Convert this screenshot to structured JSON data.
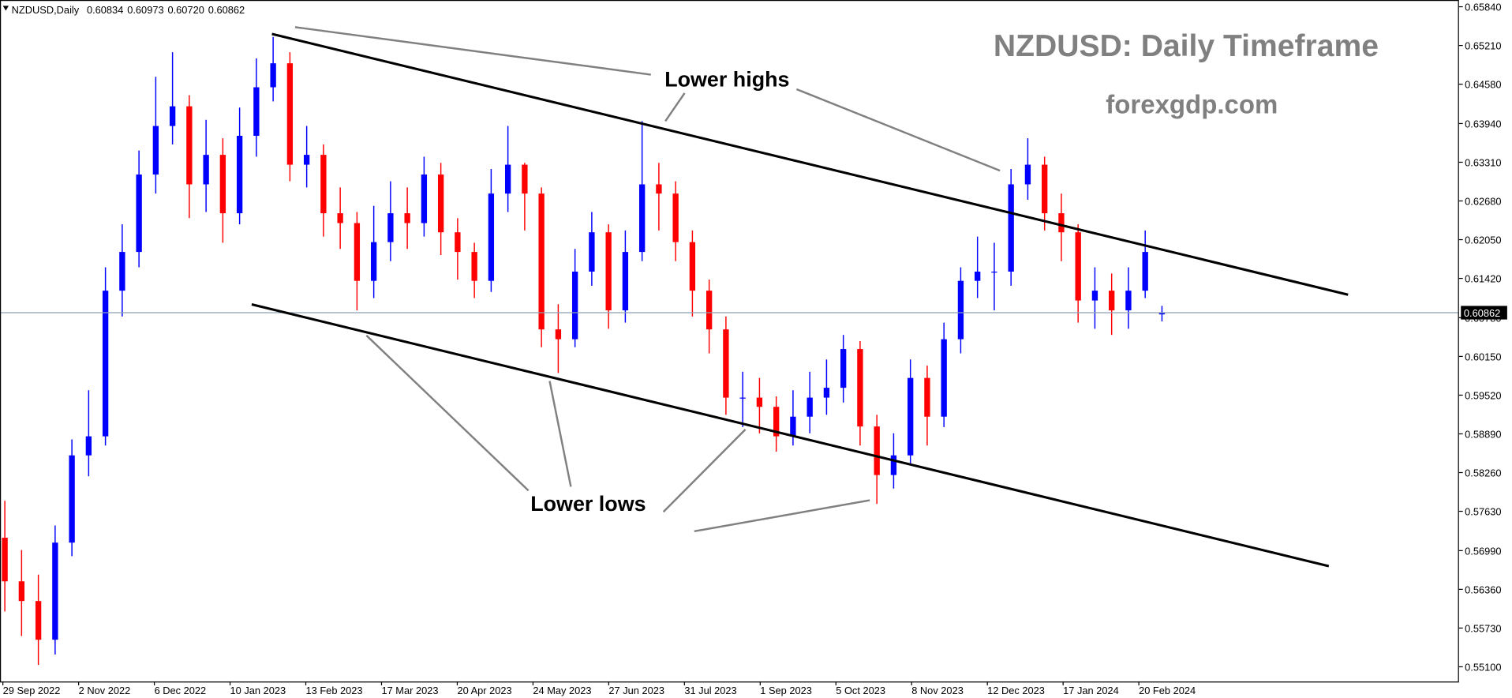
{
  "chart_data": {
    "type": "candlestick",
    "symbol": "NZDUSD,Daily",
    "title": "NZDUSD: Daily Timeframe",
    "subtitle": "forexgdp.com",
    "annotations": [
      "Lower highs",
      "Lower lows"
    ],
    "xticks": [
      "29 Sep 2022",
      "2 Nov 2022",
      "6 Dec 2022",
      "10 Jan 2023",
      "13 Feb 2023",
      "17 Mar 2023",
      "20 Apr 2023",
      "24 May 2023",
      "27 Jun 2023",
      "31 Jul 2023",
      "1 Sep 2023",
      "5 Oct 2023",
      "8 Nov 2023",
      "12 Dec 2023",
      "17 Jan 2024",
      "20 Feb 2024"
    ],
    "open": [
      0.572,
      0.5649,
      0.5617,
      0.5554,
      0.5712,
      0.5854,
      0.5885,
      0.6122,
      0.6185,
      0.6311,
      0.639,
      0.6422,
      0.6295,
      0.6343,
      0.6248,
      0.6374,
      0.6453,
      0.6492,
      0.6327,
      0.6343,
      0.6248,
      0.6232,
      0.6138,
      0.6201,
      0.6248,
      0.6232,
      0.6311,
      0.6217,
      0.6185,
      0.6138,
      0.628,
      0.6327,
      0.628,
      0.6059,
      0.6043,
      0.6153,
      0.6217,
      0.609,
      0.6185,
      0.6295,
      0.628,
      0.6201,
      0.6122,
      0.6059,
      0.5948,
      0.5948,
      0.5933,
      0.5885,
      0.5917,
      0.5948,
      0.5964,
      0.6027,
      0.5901,
      0.5822,
      0.5854,
      0.598,
      0.5917,
      0.6043,
      0.6138,
      0.6153,
      0.6153,
      0.6295,
      0.6327,
      0.6248,
      0.6217,
      0.6106,
      0.6122,
      0.609,
      0.6122,
      0.60834
    ],
    "high": [
      0.578,
      0.57,
      0.566,
      0.574,
      0.588,
      0.596,
      0.616,
      0.623,
      0.635,
      0.647,
      0.651,
      0.644,
      0.64,
      0.637,
      0.642,
      0.65,
      0.6535,
      0.651,
      0.639,
      0.636,
      0.629,
      0.625,
      0.626,
      0.63,
      0.629,
      0.634,
      0.633,
      0.624,
      0.62,
      0.632,
      0.639,
      0.633,
      0.629,
      0.61,
      0.619,
      0.625,
      0.623,
      0.622,
      0.6398,
      0.633,
      0.63,
      0.622,
      0.614,
      0.608,
      0.599,
      0.598,
      0.595,
      0.596,
      0.599,
      0.601,
      0.605,
      0.604,
      0.592,
      0.589,
      0.601,
      0.6,
      0.607,
      0.616,
      0.621,
      0.62,
      0.632,
      0.637,
      0.634,
      0.628,
      0.623,
      0.616,
      0.615,
      0.616,
      0.622,
      0.60973
    ],
    "low": [
      0.56,
      0.556,
      0.5513,
      0.553,
      0.569,
      0.582,
      0.587,
      0.608,
      0.616,
      0.628,
      0.636,
      0.624,
      0.625,
      0.62,
      0.623,
      0.634,
      0.643,
      0.63,
      0.629,
      0.621,
      0.619,
      0.609,
      0.611,
      0.617,
      0.619,
      0.621,
      0.618,
      0.614,
      0.611,
      0.612,
      0.625,
      0.622,
      0.603,
      0.5988,
      0.603,
      0.613,
      0.606,
      0.607,
      0.617,
      0.622,
      0.617,
      0.608,
      0.602,
      0.592,
      0.59,
      0.589,
      0.586,
      0.587,
      0.589,
      0.592,
      0.594,
      0.587,
      0.5775,
      0.58,
      0.584,
      0.587,
      0.59,
      0.602,
      0.611,
      0.609,
      0.613,
      0.627,
      0.622,
      0.617,
      0.607,
      0.606,
      0.605,
      0.606,
      0.611,
      0.6072
    ],
    "close": [
      0.5649,
      0.5617,
      0.5554,
      0.5712,
      0.5854,
      0.5885,
      0.6122,
      0.6185,
      0.6311,
      0.639,
      0.6422,
      0.6295,
      0.6343,
      0.6248,
      0.6374,
      0.6453,
      0.6492,
      0.6327,
      0.6343,
      0.6248,
      0.6232,
      0.6138,
      0.6201,
      0.6248,
      0.6232,
      0.6311,
      0.6217,
      0.6185,
      0.6138,
      0.628,
      0.6327,
      0.628,
      0.6059,
      0.6043,
      0.6153,
      0.6217,
      0.609,
      0.6185,
      0.6295,
      0.628,
      0.6201,
      0.6122,
      0.6059,
      0.5948,
      0.5948,
      0.5933,
      0.5885,
      0.5917,
      0.5948,
      0.5964,
      0.6027,
      0.5901,
      0.5822,
      0.5854,
      0.598,
      0.5917,
      0.6043,
      0.6138,
      0.6153,
      0.6153,
      0.6295,
      0.6327,
      0.6248,
      0.6217,
      0.6106,
      0.6122,
      0.609,
      0.6122,
      0.6185,
      0.60862
    ],
    "last_bar_labels": [
      "0.60834",
      "0.60973",
      "0.60720",
      "0.60862"
    ],
    "up_color": "#0000ff",
    "down_color": "#ff0000",
    "price_line_color": "#8ca0b4",
    "ylim": [
      0.5486,
      0.6595
    ],
    "yticks": [
      {
        "value": 0.6584,
        "label": "0.65840"
      },
      {
        "value": 0.6521,
        "label": "0.65210"
      },
      {
        "value": 0.6458,
        "label": "0.64580"
      },
      {
        "value": 0.6394,
        "label": "0.63940"
      },
      {
        "value": 0.6331,
        "label": "0.63310"
      },
      {
        "value": 0.6268,
        "label": "0.62680"
      },
      {
        "value": 0.6205,
        "label": "0.62050"
      },
      {
        "value": 0.6142,
        "label": "0.61420"
      },
      {
        "value": 0.6078,
        "label": "0.60780"
      },
      {
        "value": 0.6015,
        "label": "0.60150"
      },
      {
        "value": 0.5952,
        "label": "0.59520"
      },
      {
        "value": 0.5889,
        "label": "0.58890"
      },
      {
        "value": 0.5826,
        "label": "0.58260"
      },
      {
        "value": 0.5763,
        "label": "0.57630"
      },
      {
        "value": 0.5699,
        "label": "0.56990"
      },
      {
        "value": 0.5636,
        "label": "0.56360"
      },
      {
        "value": 0.5573,
        "label": "0.55730"
      },
      {
        "value": 0.551,
        "label": "0.55100"
      }
    ]
  }
}
